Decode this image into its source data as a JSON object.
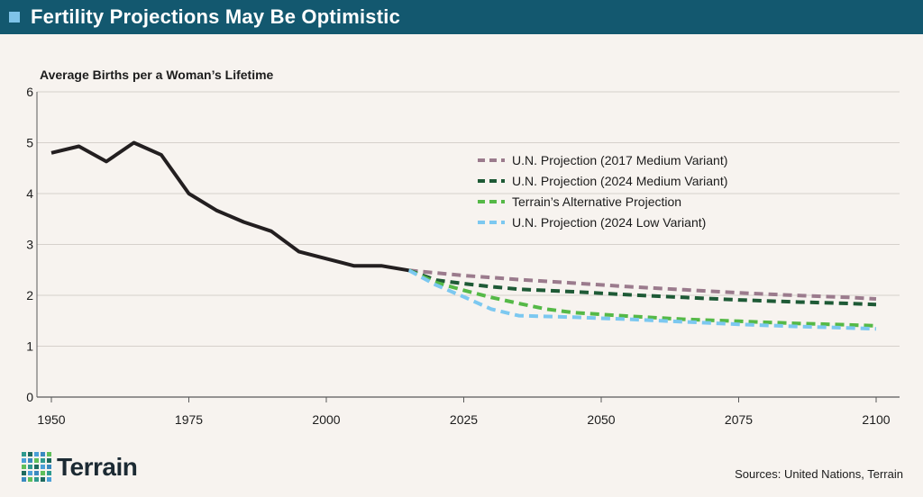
{
  "header": {
    "title": "Fertility Projections May Be Optimistic"
  },
  "footer": {
    "sources": "Sources: United Nations, Terrain",
    "brand": "Terrain"
  },
  "colors": {
    "historical": "#231f20",
    "un2017": "#9b7b8d",
    "un2024medium": "#1e5a36",
    "terrain": "#55b947",
    "un2024low": "#7cc8f0",
    "grid": "#d6d0cb",
    "brand_dots": [
      "#2e9a8e",
      "#4aa0d8",
      "#5fbf5a",
      "#1e6a5e",
      "#3a8ac0"
    ]
  },
  "chart_data": {
    "type": "line",
    "title": "Fertility Projections May Be Optimistic",
    "ylabel": "Average Births per a Woman’s Lifetime",
    "xlabel": "",
    "xlim": [
      1950,
      2100
    ],
    "ylim": [
      0,
      6
    ],
    "xticks": [
      1950,
      1975,
      2000,
      2025,
      2050,
      2075,
      2100
    ],
    "yticks": [
      0,
      1,
      2,
      3,
      4,
      5,
      6
    ],
    "grid": true,
    "legend_position": "right-center",
    "series": [
      {
        "key": "historical",
        "name": "",
        "style": "solid",
        "x": [
          1950,
          1955,
          1960,
          1965,
          1970,
          1975,
          1980,
          1985,
          1990,
          1995,
          2000,
          2005,
          2010,
          2015
        ],
        "values": [
          4.8,
          4.93,
          4.63,
          5.0,
          4.76,
          4.0,
          3.67,
          3.44,
          3.26,
          2.86,
          2.72,
          2.58,
          2.58,
          2.49
        ]
      },
      {
        "key": "un2017",
        "name": "U.N. Projection (2017 Medium Variant)",
        "style": "dashed",
        "x": [
          2015,
          2025,
          2035,
          2045,
          2055,
          2065,
          2075,
          2085,
          2095,
          2100
        ],
        "values": [
          2.49,
          2.39,
          2.31,
          2.24,
          2.17,
          2.11,
          2.05,
          2.0,
          1.96,
          1.93
        ]
      },
      {
        "key": "un2024medium",
        "name": "U.N. Projection (2024 Medium Variant)",
        "style": "dashed",
        "x": [
          2015,
          2020,
          2025,
          2030,
          2035,
          2045,
          2055,
          2065,
          2075,
          2085,
          2095,
          2100
        ],
        "values": [
          2.49,
          2.3,
          2.23,
          2.17,
          2.12,
          2.07,
          2.01,
          1.96,
          1.91,
          1.87,
          1.84,
          1.82
        ]
      },
      {
        "key": "terrain",
        "name": "Terrain’s Alternative Projection",
        "style": "dashed",
        "x": [
          2015,
          2020,
          2025,
          2030,
          2035,
          2040,
          2045,
          2055,
          2065,
          2075,
          2085,
          2095,
          2100
        ],
        "values": [
          2.49,
          2.25,
          2.1,
          1.96,
          1.84,
          1.73,
          1.66,
          1.59,
          1.53,
          1.49,
          1.45,
          1.42,
          1.4
        ]
      },
      {
        "key": "un2024low",
        "name": "U.N. Projection (2024 Low Variant)",
        "style": "dashed",
        "x": [
          2015,
          2020,
          2025,
          2030,
          2035,
          2045,
          2055,
          2065,
          2075,
          2085,
          2095,
          2100
        ],
        "values": [
          2.49,
          2.2,
          1.97,
          1.73,
          1.6,
          1.57,
          1.53,
          1.48,
          1.43,
          1.39,
          1.36,
          1.34
        ]
      }
    ]
  }
}
